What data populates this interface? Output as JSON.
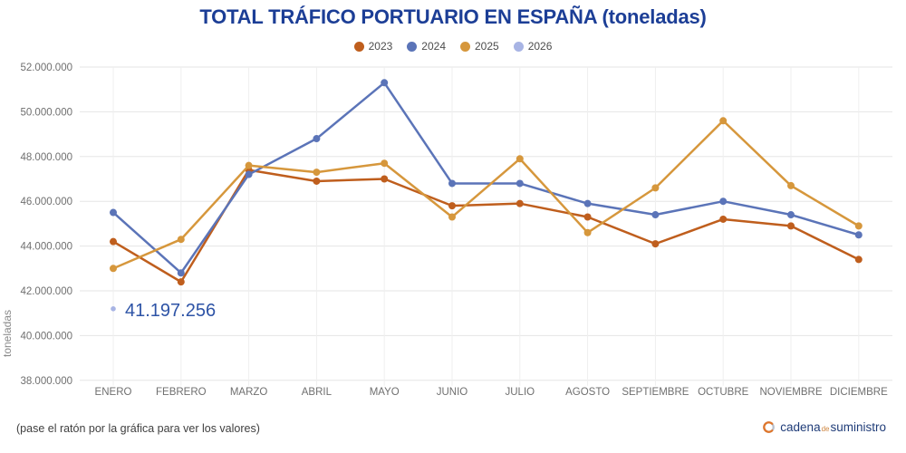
{
  "chart_data": {
    "type": "line",
    "title": "TOTAL TRÁFICO PORTUARIO EN ESPAÑA (toneladas)",
    "ylabel": "toneladas",
    "ylim": [
      38000000,
      52000000
    ],
    "ytick_step": 2000000,
    "grid": true,
    "legend_position": "top",
    "categories": [
      "ENERO",
      "FEBRERO",
      "MARZO",
      "ABRIL",
      "MAYO",
      "JUNIO",
      "JULIO",
      "AGOSTO",
      "SEPTIEMBRE",
      "OCTUBRE",
      "NOVIEMBRE",
      "DICIEMBRE"
    ],
    "series": [
      {
        "name": "2023",
        "color": "#bf5e1d",
        "values": [
          44200000,
          42400000,
          47400000,
          46900000,
          47000000,
          45800000,
          45900000,
          45300000,
          44100000,
          45200000,
          44900000,
          43400000
        ]
      },
      {
        "name": "2024",
        "color": "#5b74b8",
        "values": [
          45500000,
          42800000,
          47200000,
          48800000,
          51300000,
          46800000,
          46800000,
          45900000,
          45400000,
          46000000,
          45400000,
          44500000
        ]
      },
      {
        "name": "2025",
        "color": "#d6973c",
        "values": [
          43000000,
          44300000,
          47600000,
          47300000,
          47700000,
          45300000,
          47900000,
          44600000,
          46600000,
          49600000,
          46700000,
          44900000
        ]
      },
      {
        "name": "2026",
        "color": "#a8b4e4",
        "values": [
          41197256,
          null,
          null,
          null,
          null,
          null,
          null,
          null,
          null,
          null,
          null,
          null
        ]
      }
    ],
    "annotation": {
      "text": "41.197.256",
      "series": "2026",
      "index": 0,
      "color": "#2d53a6"
    }
  },
  "footer": {
    "hint": "(pase el ratón por la gráfica para ver los valores)"
  },
  "brand": {
    "part1": "cadena",
    "part2": "de",
    "part3": "suministro",
    "accent_color": "#e0762b",
    "text_color": "#1f3c78"
  }
}
